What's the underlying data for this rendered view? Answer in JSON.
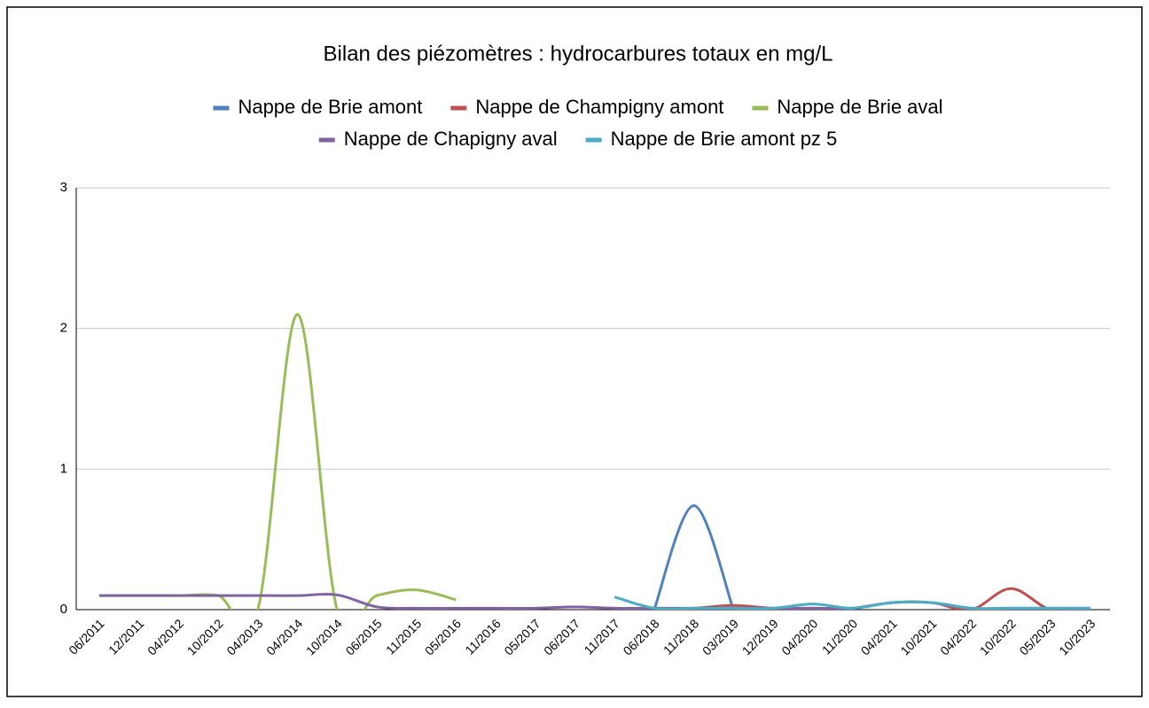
{
  "chart_data": {
    "type": "line",
    "title": "Bilan des piézomètres : hydrocarbures totaux en mg/L",
    "categories": [
      "06/2011",
      "12/2011",
      "04/2012",
      "10/2012",
      "04/2013",
      "04/2014",
      "10/2014",
      "06/2015",
      "11/2015",
      "05/2016",
      "11/2016",
      "05/2017",
      "06/2017",
      "11/2017",
      "06/2018",
      "11/2018",
      "03/2019",
      "12/2019",
      "04/2020",
      "11/2020",
      "04/2021",
      "10/2021",
      "04/2022",
      "10/2022",
      "05/2023",
      "10/2023"
    ],
    "series": [
      {
        "name": "Nappe de Brie amont",
        "color": "#4f81bd",
        "values": [
          null,
          null,
          null,
          null,
          null,
          null,
          null,
          null,
          null,
          null,
          null,
          null,
          null,
          null,
          0,
          0.74,
          0,
          null,
          null,
          null,
          null,
          null,
          null,
          null,
          null,
          null
        ]
      },
      {
        "name": "Nappe de Champigny amont",
        "color": "#c0504d",
        "values": [
          null,
          null,
          null,
          null,
          null,
          null,
          null,
          null,
          null,
          null,
          null,
          null,
          null,
          null,
          0,
          0.01,
          0.03,
          0.01,
          0.01,
          0.01,
          0.05,
          0.05,
          0,
          0.15,
          0,
          0.01
        ]
      },
      {
        "name": "Nappe de Brie aval",
        "color": "#9bbb59",
        "values": [
          0.1,
          0.1,
          0.1,
          0.1,
          0,
          2.1,
          0,
          0.1,
          0.14,
          0.07,
          null,
          null,
          null,
          null,
          null,
          null,
          null,
          null,
          null,
          null,
          null,
          null,
          null,
          null,
          null,
          null
        ]
      },
      {
        "name": "Nappe de Chapigny aval",
        "color": "#8064a2",
        "values": [
          0.1,
          0.1,
          0.1,
          0.1,
          0.1,
          0.1,
          0.105,
          0.02,
          0.01,
          0.01,
          0.01,
          0.01,
          0.02,
          0.01,
          0.01,
          0.01,
          0.01,
          0.01,
          0.01,
          0.01,
          0.05,
          0.05,
          0.01,
          0.01,
          0.01,
          0.01
        ]
      },
      {
        "name": "Nappe de Brie amont pz 5",
        "color": "#4bacc6",
        "values": [
          null,
          null,
          null,
          null,
          null,
          null,
          null,
          null,
          null,
          null,
          null,
          null,
          null,
          0.09,
          0.01,
          0.01,
          0.01,
          0.01,
          0.04,
          0.01,
          0.05,
          0.05,
          0.01,
          0.01,
          0.01,
          0.01
        ]
      }
    ],
    "ylim": [
      0,
      3
    ],
    "yticks": [
      0,
      1,
      2,
      3
    ],
    "grid": true
  }
}
